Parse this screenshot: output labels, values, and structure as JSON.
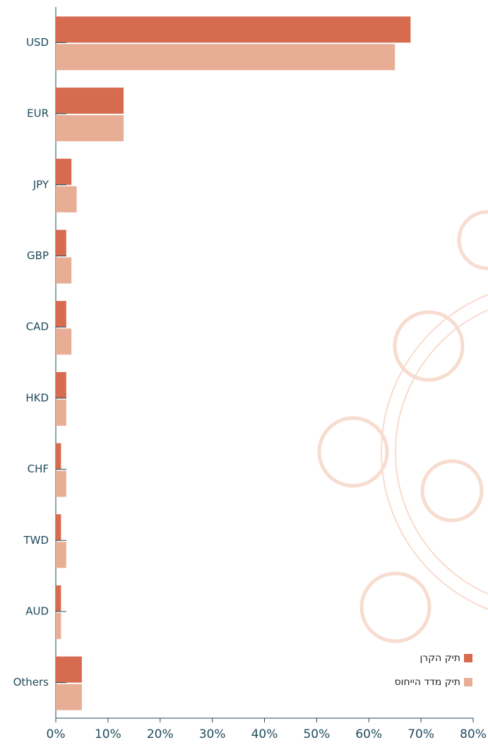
{
  "chart_data": {
    "type": "hbar",
    "categories": [
      "USD",
      "EUR",
      "JPY",
      "GBP",
      "CAD",
      "HKD",
      "CHF",
      "TWD",
      "AUD",
      "Others"
    ],
    "series": [
      {
        "name": "תיק הקרן",
        "color": "#d76b4f",
        "values": [
          68,
          13,
          3,
          2,
          2,
          2,
          1,
          1,
          1,
          5
        ]
      },
      {
        "name": "תיק מדד הייחוס",
        "color": "#e8ae95",
        "values": [
          65,
          13,
          4,
          3,
          3,
          2,
          2,
          2,
          1,
          5
        ]
      }
    ],
    "xlim": [
      0,
      80
    ],
    "xticks": [
      {
        "value": 0,
        "label": "0%"
      },
      {
        "value": 10,
        "label": "10%"
      },
      {
        "value": 20,
        "label": "20%"
      },
      {
        "value": 30,
        "label": "30%"
      },
      {
        "value": 40,
        "label": "40%"
      },
      {
        "value": 50,
        "label": "50%"
      },
      {
        "value": 60,
        "label": "60%"
      },
      {
        "value": 70,
        "label": "70%"
      },
      {
        "value": 80,
        "label": "80%"
      }
    ],
    "legend": "bottom-right"
  }
}
